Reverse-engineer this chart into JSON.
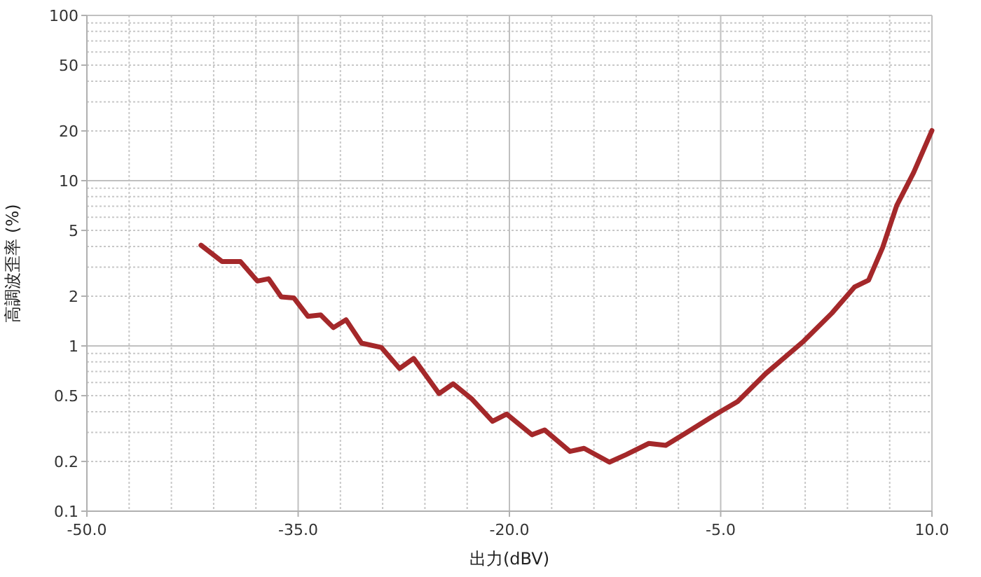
{
  "chart_data": {
    "type": "line",
    "xlabel": "出力(dBV)",
    "ylabel": "高調波歪率 (%)",
    "log": "y",
    "grid": true,
    "marker": "none",
    "line_style": "solid",
    "xlim": [
      -50,
      10
    ],
    "xticks": [
      {
        "value": -50,
        "label": "-50.0"
      },
      {
        "value": -35,
        "label": "-35.0"
      },
      {
        "value": -20,
        "label": "-20.0"
      },
      {
        "value": -5,
        "label": "-5.0"
      },
      {
        "value": 10,
        "label": "10.0"
      }
    ],
    "ylim": [
      0.1,
      100
    ],
    "yticks": [
      0.1,
      0.2,
      0.5,
      1,
      2,
      5,
      10,
      20,
      50,
      100
    ],
    "series": [
      {
        "color": "#a4282a",
        "x": [
          -41.9,
          -40.4,
          -39.1,
          -37.9,
          -37.1,
          -36.2,
          -35.3,
          -34.3,
          -33.4,
          -32.5,
          -31.6,
          -30.5,
          -29.1,
          -27.8,
          -26.8,
          -25.0,
          -24.0,
          -22.7,
          -21.2,
          -20.2,
          -18.4,
          -17.5,
          -15.7,
          -14.7,
          -12.9,
          -11.7,
          -10.1,
          -8.9,
          -7.4,
          -5.1,
          -3.8,
          -1.8,
          0.9,
          2.9,
          4.5,
          5.5,
          6.5,
          7.5,
          8.7,
          10
        ],
        "values": [
          4.07,
          3.24,
          3.24,
          2.47,
          2.55,
          1.98,
          1.95,
          1.51,
          1.54,
          1.29,
          1.44,
          1.04,
          0.98,
          0.73,
          0.84,
          0.515,
          0.59,
          0.48,
          0.35,
          0.387,
          0.29,
          0.31,
          0.23,
          0.24,
          0.198,
          0.22,
          0.257,
          0.25,
          0.3,
          0.397,
          0.46,
          0.68,
          1.07,
          1.58,
          2.27,
          2.5,
          3.94,
          7.08,
          11.2,
          20.1
        ]
      }
    ]
  }
}
